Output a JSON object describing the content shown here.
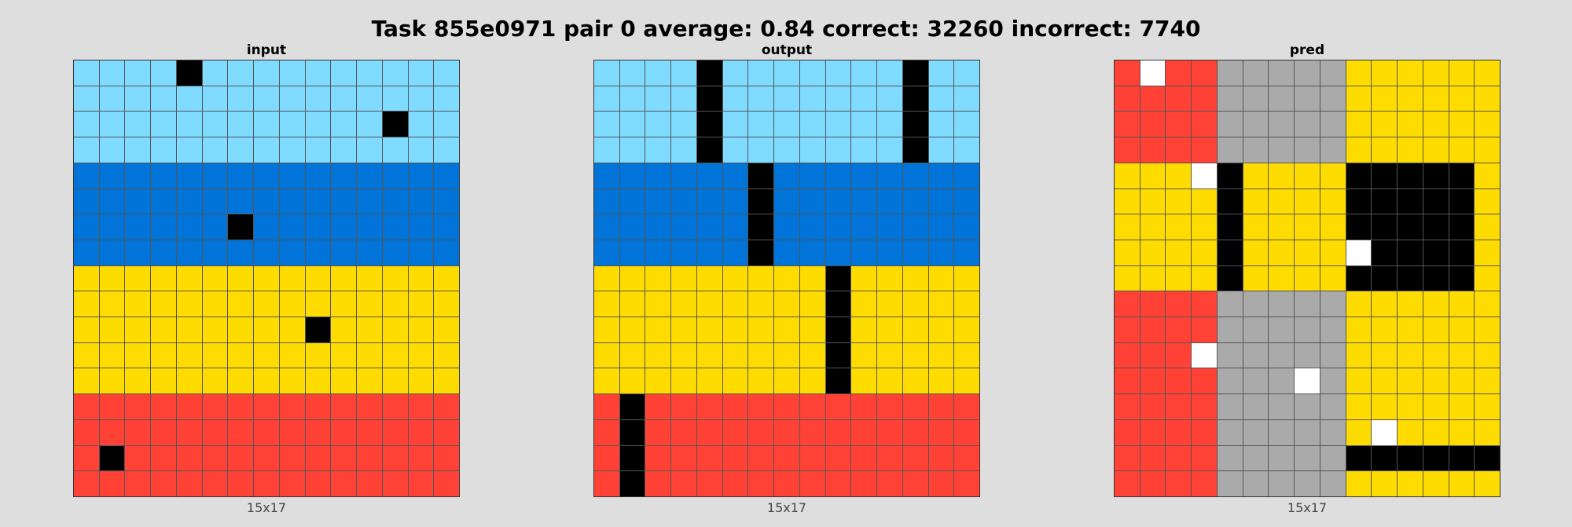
{
  "title": "Task 855e0971 pair 0 average: 0.84 correct: 32260 incorrect: 7740",
  "palette": {
    "0": "#000000",
    "1": "#0074d9",
    "2": "#ff4136",
    "4": "#ffdc00",
    "5": "#aaaaaa",
    "8": "#7fdbff",
    "9": "#ffffff"
  },
  "panels": [
    {
      "title": "input",
      "dims": "15x17",
      "grid": [
        "888808888888888",
        "888888888888888",
        "888888888888088",
        "888888888888888",
        "111111111111111",
        "111111111111111",
        "111111011111111",
        "111111111111111",
        "444444444444444",
        "444444444444444",
        "444444444044444",
        "444444444444444",
        "444444444444444",
        "222222222222222",
        "222222222222222",
        "202222222222222",
        "222222222222222"
      ]
    },
    {
      "title": "output",
      "dims": "15x17",
      "grid": [
        "888808888888088",
        "888808888888088",
        "888808888888088",
        "888808888888088",
        "111111011111111",
        "111111011111111",
        "111111011111111",
        "111111011111111",
        "444444444044444",
        "444444444044444",
        "444444444044444",
        "444444444044444",
        "444444444044444",
        "202222222222222",
        "202222222222222",
        "202222222222222",
        "202222222222222"
      ]
    },
    {
      "title": "pred",
      "dims": "15x17",
      "grid": [
        "292255555444444",
        "222255555444444",
        "222255555444444",
        "222255555444444",
        "444904444000004",
        "444404444000004",
        "444404444000004",
        "444404444900004",
        "444404444000004",
        "222255555444444",
        "222255555444444",
        "222955555444444",
        "222255595444444",
        "222255555444444",
        "222255555494444",
        "222255555000000",
        "222255555444444"
      ]
    }
  ]
}
